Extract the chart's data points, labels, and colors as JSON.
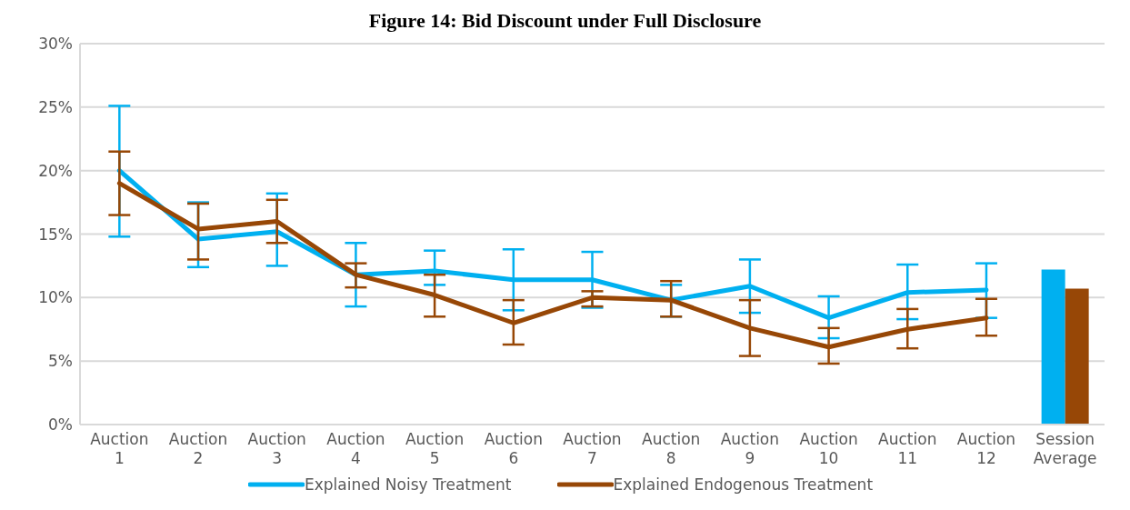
{
  "chart_data": {
    "type": "line",
    "title": "Figure 14: Bid Discount under Full Disclosure",
    "categories": [
      "Auction 1",
      "Auction 2",
      "Auction 3",
      "Auction 4",
      "Auction 5",
      "Auction 6",
      "Auction 7",
      "Auction 8",
      "Auction 9",
      "Auction 10",
      "Auction 11",
      "Auction 12",
      "Session Average"
    ],
    "series": [
      {
        "name": "Explained Noisy Treatment",
        "color": "#00b0f0",
        "values": [
          20.0,
          14.6,
          15.2,
          11.8,
          12.1,
          11.4,
          11.4,
          9.8,
          10.9,
          8.4,
          10.4,
          10.6,
          null
        ],
        "errors": [
          [
            14.8,
            25.1
          ],
          [
            12.4,
            17.5
          ],
          [
            12.5,
            18.2
          ],
          [
            9.3,
            14.3
          ],
          [
            11.0,
            13.7
          ],
          [
            9.0,
            13.8
          ],
          [
            9.2,
            13.6
          ],
          [
            8.5,
            11.0
          ],
          [
            8.8,
            13.0
          ],
          [
            6.8,
            10.1
          ],
          [
            8.3,
            12.6
          ],
          [
            8.4,
            12.7
          ],
          null
        ]
      },
      {
        "name": "Explained Endogenous Treatment",
        "color": "#974706",
        "values": [
          19.0,
          15.4,
          16.0,
          11.8,
          10.2,
          8.0,
          10.0,
          9.8,
          7.6,
          6.1,
          7.5,
          8.4,
          null
        ],
        "errors": [
          [
            16.5,
            21.5
          ],
          [
            13.0,
            17.4
          ],
          [
            14.3,
            17.7
          ],
          [
            10.8,
            12.7
          ],
          [
            8.5,
            11.8
          ],
          [
            6.3,
            9.8
          ],
          [
            9.3,
            10.5
          ],
          [
            8.5,
            11.3
          ],
          [
            5.4,
            9.8
          ],
          [
            4.8,
            7.6
          ],
          [
            6.0,
            9.1
          ],
          [
            7.0,
            9.9
          ],
          null
        ]
      },
      {
        "type": "bar",
        "color": "#00b0f0",
        "values": [
          null,
          null,
          null,
          null,
          null,
          null,
          null,
          null,
          null,
          null,
          null,
          null,
          12.2
        ]
      },
      {
        "type": "bar",
        "color": "#974706",
        "values": [
          null,
          null,
          null,
          null,
          null,
          null,
          null,
          null,
          null,
          null,
          null,
          null,
          10.7
        ]
      }
    ],
    "ylim": [
      0,
      30
    ],
    "yticks": [
      {
        "value": 0,
        "label": "0%"
      },
      {
        "value": 5,
        "label": "5%"
      },
      {
        "value": 10,
        "label": "10%"
      },
      {
        "value": 15,
        "label": "15%"
      },
      {
        "value": 20,
        "label": "20%"
      },
      {
        "value": 25,
        "label": "25%"
      },
      {
        "value": 30,
        "label": "30%"
      }
    ],
    "grid": "y",
    "legend": "bottom",
    "marker": "none",
    "line_style": "solid"
  }
}
